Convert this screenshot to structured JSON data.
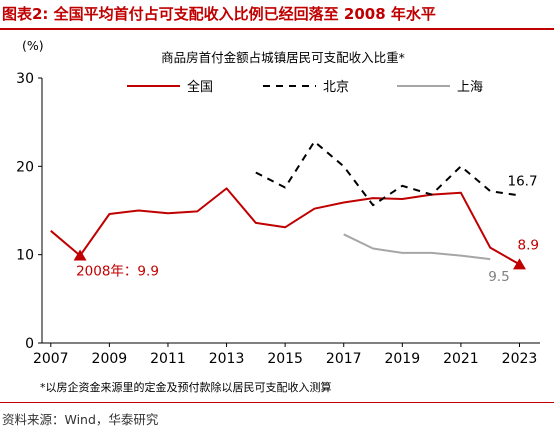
{
  "figure": {
    "title": "图表2: 全国平均首付占可支配收入比例已经回落至 2008 年水平",
    "footnote": "*以房企资金来源里的定金及预付款除以居民可支配收入测算",
    "source": "资料来源：Wind，华泰研究"
  },
  "chart_data": {
    "type": "line",
    "title": "商品房首付金额占城镇居民可支配收入比重*",
    "ylabel": "(%)",
    "xlabel": "",
    "ylim": [
      0,
      30
    ],
    "xlim": [
      2006.7,
      2023.7
    ],
    "yticks": [
      0,
      10,
      20,
      30
    ],
    "xticks": [
      2007,
      2009,
      2011,
      2013,
      2015,
      2017,
      2019,
      2021,
      2023
    ],
    "grid": false,
    "legend": "top",
    "series": [
      {
        "name": "全国",
        "color": "#c00000",
        "style": "solid",
        "x": [
          2007,
          2008,
          2009,
          2010,
          2011,
          2012,
          2013,
          2014,
          2015,
          2016,
          2017,
          2018,
          2019,
          2020,
          2021,
          2022,
          2023
        ],
        "values": [
          12.7,
          9.9,
          14.6,
          15.0,
          14.7,
          14.9,
          17.5,
          13.6,
          13.1,
          15.2,
          15.9,
          16.4,
          16.3,
          16.8,
          17.0,
          10.8,
          8.9
        ]
      },
      {
        "name": "北京",
        "color": "#000000",
        "style": "dashed",
        "x": [
          2014,
          2015,
          2016,
          2017,
          2018,
          2019,
          2020,
          2021,
          2022,
          2023
        ],
        "values": [
          19.3,
          17.6,
          22.8,
          20.0,
          15.6,
          17.8,
          16.8,
          20.0,
          17.2,
          16.7
        ]
      },
      {
        "name": "上海",
        "color": "#a6a6a6",
        "style": "solid",
        "x": [
          2017,
          2018,
          2019,
          2020,
          2021,
          2022
        ],
        "values": [
          12.3,
          10.7,
          10.2,
          10.2,
          9.9,
          9.5
        ]
      }
    ],
    "annotations": [
      {
        "id": "ann-2008",
        "text": "2008年：9.9",
        "x": 2008,
        "y": 9.9,
        "color": "#c00000",
        "marker": "triangle"
      },
      {
        "id": "ann-2023",
        "text": "8.9",
        "x": 2023,
        "y": 8.9,
        "color": "#c00000",
        "marker": "triangle"
      },
      {
        "id": "ann-bj",
        "text": "16.7",
        "x": 2023,
        "y": 16.7,
        "color": "#000000"
      },
      {
        "id": "ann-sh",
        "text": "9.5",
        "x": 2022,
        "y": 9.5,
        "color": "#808080"
      }
    ]
  }
}
